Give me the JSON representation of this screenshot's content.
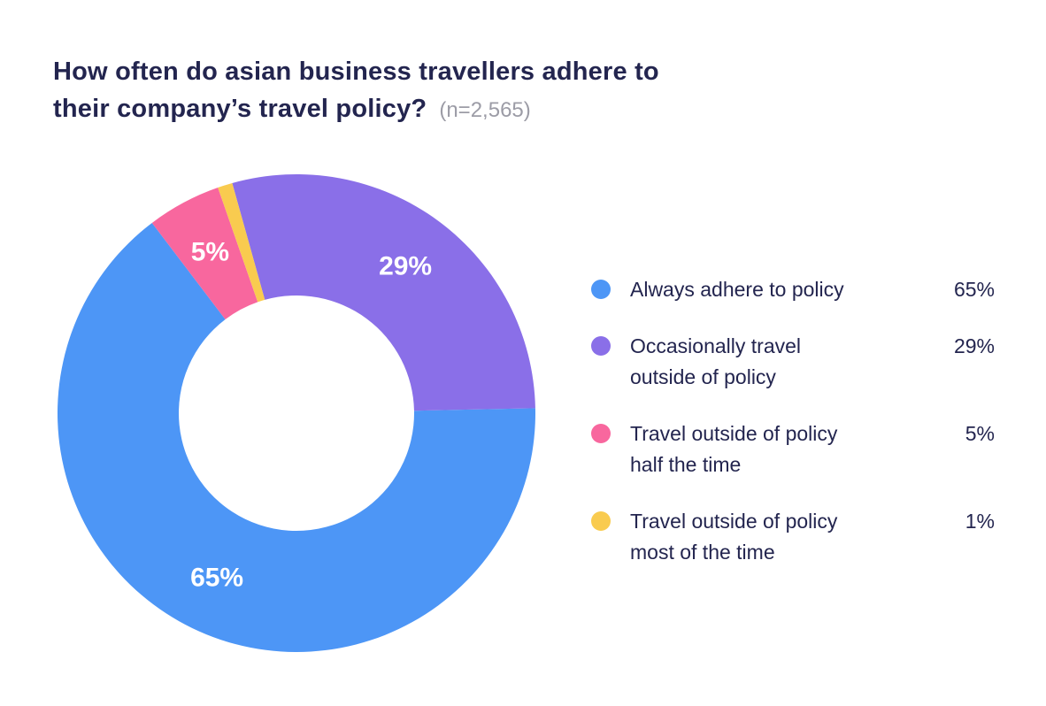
{
  "header": {
    "title_line1": "How often do asian business travellers adhere to",
    "title_line2": "their company’s travel policy?",
    "sample_note": "(n=2,565)"
  },
  "chart_data": {
    "type": "pie",
    "variant": "donut",
    "title": "How often do asian business travellers adhere to their company’s travel policy?",
    "sample_size_label": "(n=2,565)",
    "legend_position": "right",
    "background_color": "#ffffff",
    "text_color": "#23254f",
    "segments": [
      {
        "label": "Always adhere to policy",
        "value": 65,
        "value_label": "65%",
        "color": "#4d96f6",
        "start_angle": 88.8,
        "show_slice_label": true
      },
      {
        "label": "Occasionally travel\noutside of policy",
        "value": 29,
        "value_label": "29%",
        "color": "#8a6fe8",
        "start_angle": -15.6,
        "show_slice_label": true
      },
      {
        "label": "Travel outside of policy\nhalf the time",
        "value": 5,
        "value_label": "5%",
        "color": "#f8679e",
        "start_angle": 322.8,
        "show_slice_label": true
      },
      {
        "label": "Travel outside of policy\nmost of the time",
        "value": 1,
        "value_label": "1%",
        "color": "#f9cb4f",
        "start_angle": 340.8,
        "show_slice_label": false
      }
    ]
  }
}
